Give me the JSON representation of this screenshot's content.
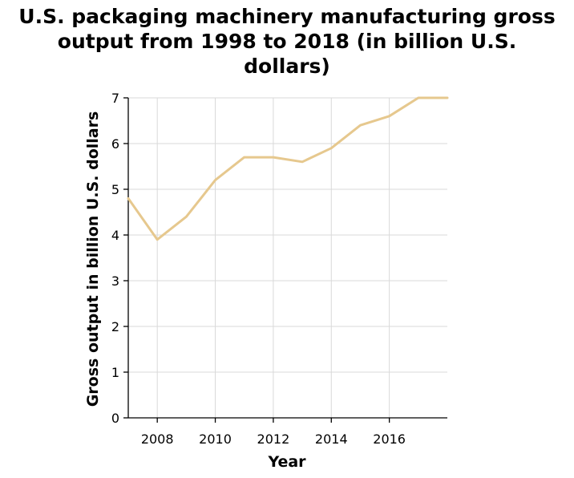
{
  "chart_data": {
    "type": "line",
    "title_lines": [
      "U.S. packaging machinery manufacturing gross",
      "output from 1998 to 2018 (in billion U.S.",
      "dollars)"
    ],
    "xlabel": "Year",
    "ylabel": "Gross output in billion U.S. dollars",
    "xlim": [
      2007,
      2018
    ],
    "ylim": [
      0,
      7
    ],
    "x_ticks": [
      2008,
      2010,
      2012,
      2014,
      2016
    ],
    "y_ticks": [
      0,
      1,
      2,
      3,
      4,
      5,
      6,
      7
    ],
    "grid": true,
    "line_color": "#e6c88e",
    "series": [
      {
        "x": [
          2007,
          2008,
          2009,
          2010,
          2011,
          2012,
          2013,
          2014,
          2015,
          2016,
          2017,
          2018
        ],
        "y": [
          4.8,
          3.9,
          4.4,
          5.2,
          5.7,
          5.7,
          5.6,
          5.9,
          6.4,
          6.6,
          7.0,
          7.0
        ]
      }
    ]
  }
}
